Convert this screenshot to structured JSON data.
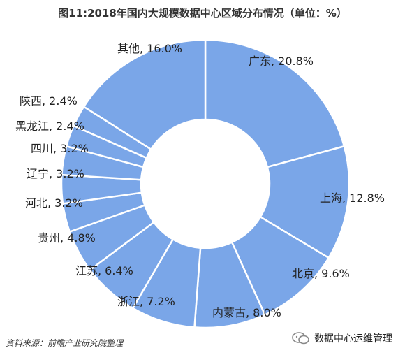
{
  "chart_data": {
    "type": "pie",
    "title": "图11:2018年国内大规模数据中心区域分布情况（单位：%）",
    "categories": [
      "广东",
      "上海",
      "北京",
      "内蒙古",
      "浙江",
      "江苏",
      "贵州",
      "河北",
      "辽宁",
      "四川",
      "黑龙江",
      "陕西",
      "其他"
    ],
    "values": [
      20.8,
      12.8,
      9.6,
      8.0,
      7.2,
      6.4,
      4.8,
      3.2,
      3.2,
      3.2,
      2.4,
      2.4,
      16.0
    ],
    "labels": [
      "广东, 20.8%",
      "上海, 12.8%",
      "北京, 9.6%",
      "内蒙古, 8.0%",
      "浙江, 7.2%",
      "江苏, 6.4%",
      "贵州, 4.8%",
      "河北, 3.2%",
      "辽宁, 3.2%",
      "四川, 3.2%",
      "黑龙江, 2.4%",
      "陕西, 2.4%",
      "其他, 16.0%"
    ],
    "donut": true,
    "color": "#7aa6e8",
    "edge_color": "#ffffff"
  },
  "footer": {
    "source": "资料来源：前瞻产业研究院整理",
    "brand": "数据中心运维管理",
    "brand_icon": "chat-bubbles-icon"
  }
}
